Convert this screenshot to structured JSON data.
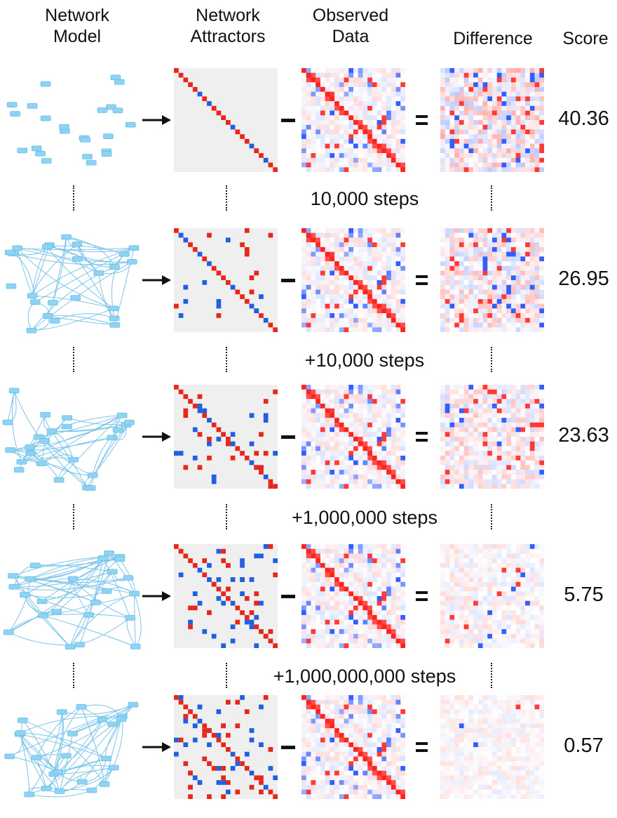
{
  "headers": {
    "model": "Network\nModel",
    "attractors": "Network\nAttractors",
    "observed": "Observed\nData",
    "difference": "Difference",
    "score": "Score"
  },
  "icons": {
    "arrow": "right-arrow-icon",
    "minus": "minus-sign-icon",
    "equals": "equals-sign-icon"
  },
  "colors": {
    "positive": "#e8261a",
    "negative": "#1f5fe0",
    "network_node": "#8fd3f4",
    "network_edge": "#7cc4e8",
    "background": "#efefef"
  },
  "rows": [
    {
      "score": "40.36",
      "steps_after": "10,000 steps",
      "network_connectivity": 0.0
    },
    {
      "score": "26.95",
      "steps_after": "+10,000 steps",
      "network_connectivity": 0.6
    },
    {
      "score": "23.63",
      "steps_after": "+1,000,000 steps",
      "network_connectivity": 0.65
    },
    {
      "score": "5.75",
      "steps_after": "+1,000,000,000 steps",
      "network_connectivity": 0.75
    },
    {
      "score": "0.57",
      "steps_after": "",
      "network_connectivity": 0.8
    }
  ]
}
